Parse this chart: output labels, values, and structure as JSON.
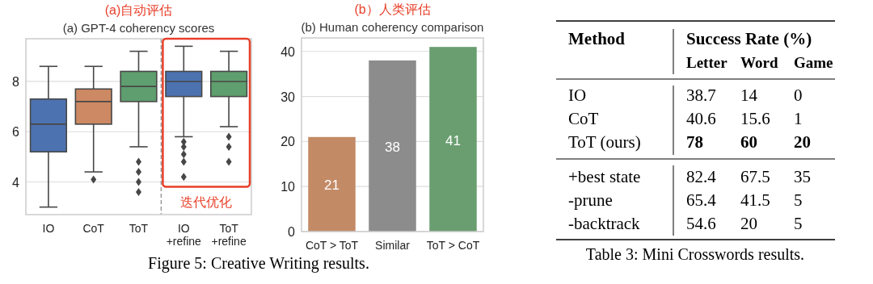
{
  "chart_data": [
    {
      "type": "box",
      "title": "(a) GPT-4 coherency scores",
      "subtitle": "(a)自动评估",
      "categories": [
        "IO",
        "CoT",
        "ToT",
        "IO\n+refine",
        "ToT\n+refine"
      ],
      "ylim": [
        2.7,
        9.7
      ],
      "yticks": [
        4,
        6,
        8
      ],
      "grid": "y",
      "colors": [
        "#4c72b0",
        "#cc8963",
        "#5f9e6e",
        "#4c72b0",
        "#5f9e6e"
      ],
      "boxes": [
        {
          "low": 3.0,
          "q1": 5.2,
          "median": 6.3,
          "q3": 7.3,
          "high": 8.6
        },
        {
          "low": 4.4,
          "q1": 6.3,
          "median": 7.2,
          "q3": 7.7,
          "high": 8.6,
          "outliers": [
            4.1
          ]
        },
        {
          "low": 5.4,
          "q1": 7.2,
          "median": 7.8,
          "q3": 8.4,
          "high": 9.2,
          "outliers": [
            4.8,
            4.4,
            4.0,
            3.6
          ]
        },
        {
          "low": 5.8,
          "q1": 7.4,
          "median": 8.0,
          "q3": 8.4,
          "high": 9.4,
          "outliers": [
            5.6,
            5.4,
            5.1,
            4.8,
            4.2
          ]
        },
        {
          "low": 6.2,
          "q1": 7.4,
          "median": 8.0,
          "q3": 8.4,
          "high": 9.2,
          "outliers": [
            5.8,
            5.4,
            4.8
          ]
        }
      ],
      "annotations": [
        "迭代优化"
      ]
    },
    {
      "type": "bar",
      "title": "(b) Human coherency comparison",
      "subtitle": "(b）人类评估",
      "categories": [
        "CoT > ToT",
        "Similar",
        "ToT > CoT"
      ],
      "values": [
        21,
        38,
        41
      ],
      "colors": [
        "#c38a66",
        "#8c8c8c",
        "#6a9e70"
      ],
      "ylim": [
        0,
        43
      ],
      "yticks": [
        0,
        10,
        20,
        30,
        40
      ],
      "grid": "y",
      "data_labels": true,
      "annotations": [
        "Figure 5: Creative Writing results."
      ]
    },
    {
      "type": "other",
      "title": "Table 3: Mini Crosswords results.",
      "annotations": [
        "Method",
        "Success Rate (%)",
        "Letter",
        "Word",
        "Game",
        "IO",
        "38.7",
        "14",
        "0",
        "CoT",
        "40.6",
        "15.6",
        "1",
        "ToT (ours)",
        "78",
        "60",
        "20",
        "+best state",
        "82.4",
        "67.5",
        "35",
        "-prune",
        "65.4",
        "41.5",
        "5",
        "-backtrack",
        "54.6",
        "20",
        "5"
      ]
    }
  ]
}
